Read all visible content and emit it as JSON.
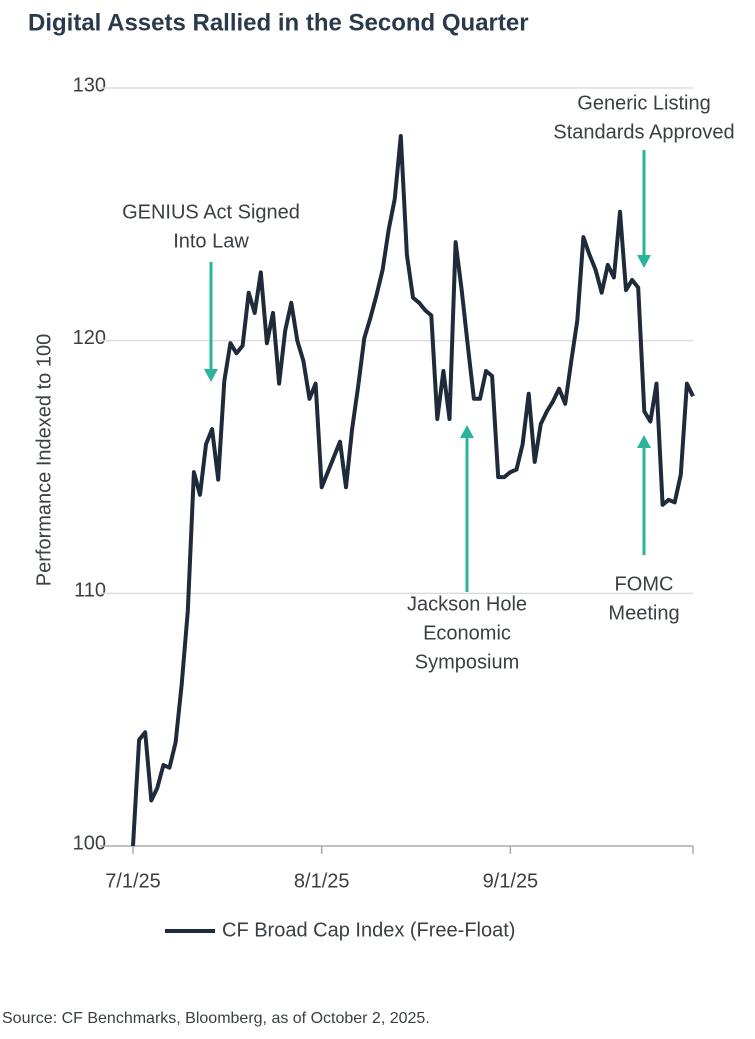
{
  "chart_data": {
    "type": "line",
    "title": "Digital Assets Rallied in the Second Quarter",
    "y_label": "Performance Indexed to 100",
    "source": "Source: CF Benchmarks, Bloomberg, as of October 2, 2025.",
    "legend": "bottom",
    "grid": true,
    "ylim": [
      100,
      130
    ],
    "yticks": [
      100,
      110,
      120,
      130
    ],
    "xlim": [
      "2025-07-01",
      "2025-10-01"
    ],
    "xticks": [
      {
        "value": "2025-07-01",
        "label": "7/1/25"
      },
      {
        "value": "2025-08-01",
        "label": "8/1/25"
      },
      {
        "value": "2025-09-01",
        "label": "9/1/25"
      }
    ],
    "x": [
      "2025-07-01",
      "2025-07-02",
      "2025-07-03",
      "2025-07-04",
      "2025-07-05",
      "2025-07-06",
      "2025-07-07",
      "2025-07-08",
      "2025-07-09",
      "2025-07-10",
      "2025-07-11",
      "2025-07-12",
      "2025-07-13",
      "2025-07-14",
      "2025-07-15",
      "2025-07-16",
      "2025-07-17",
      "2025-07-18",
      "2025-07-19",
      "2025-07-20",
      "2025-07-21",
      "2025-07-22",
      "2025-07-23",
      "2025-07-24",
      "2025-07-25",
      "2025-07-26",
      "2025-07-27",
      "2025-07-28",
      "2025-07-29",
      "2025-07-30",
      "2025-07-31",
      "2025-08-01",
      "2025-08-02",
      "2025-08-03",
      "2025-08-04",
      "2025-08-05",
      "2025-08-06",
      "2025-08-07",
      "2025-08-08",
      "2025-08-09",
      "2025-08-10",
      "2025-08-11",
      "2025-08-12",
      "2025-08-13",
      "2025-08-14",
      "2025-08-15",
      "2025-08-16",
      "2025-08-17",
      "2025-08-18",
      "2025-08-19",
      "2025-08-20",
      "2025-08-21",
      "2025-08-22",
      "2025-08-23",
      "2025-08-24",
      "2025-08-25",
      "2025-08-26",
      "2025-08-27",
      "2025-08-28",
      "2025-08-29",
      "2025-08-30",
      "2025-08-31",
      "2025-09-01",
      "2025-09-02",
      "2025-09-03",
      "2025-09-04",
      "2025-09-05",
      "2025-09-06",
      "2025-09-07",
      "2025-09-08",
      "2025-09-09",
      "2025-09-10",
      "2025-09-11",
      "2025-09-12",
      "2025-09-13",
      "2025-09-14",
      "2025-09-15",
      "2025-09-16",
      "2025-09-17",
      "2025-09-18",
      "2025-09-19",
      "2025-09-20",
      "2025-09-21",
      "2025-09-22",
      "2025-09-23",
      "2025-09-24",
      "2025-09-25",
      "2025-09-26",
      "2025-09-27",
      "2025-09-28",
      "2025-09-29",
      "2025-09-30",
      "2025-10-01"
    ],
    "series": [
      {
        "name": "CF Broad Cap Index (Free-Float)",
        "color": "#1f2a3a",
        "values": [
          100,
          104.2,
          104.5,
          101.8,
          102.3,
          103.2,
          103.1,
          104.1,
          106.4,
          109.3,
          114.8,
          113.9,
          115.9,
          116.5,
          114.5,
          118.4,
          119.9,
          119.5,
          119.8,
          121.9,
          121.1,
          122.7,
          119.9,
          121.1,
          118.3,
          120.4,
          121.5,
          120.0,
          119.2,
          117.7,
          118.3,
          114.2,
          114.8,
          115.4,
          116.0,
          114.2,
          116.5,
          118.2,
          120.1,
          120.9,
          121.8,
          122.8,
          124.4,
          125.6,
          128.1,
          123.4,
          121.7,
          121.5,
          121.2,
          121.0,
          116.9,
          118.8,
          116.9,
          123.9,
          122.0,
          119.8,
          117.7,
          117.7,
          118.8,
          118.6,
          114.6,
          114.6,
          114.8,
          114.9,
          115.9,
          117.9,
          115.2,
          116.7,
          117.2,
          117.6,
          118.1,
          117.5,
          119.2,
          120.8,
          124.1,
          123.4,
          122.8,
          121.9,
          123.0,
          122.5,
          125.1,
          122.0,
          122.4,
          122.1,
          117.2,
          116.8,
          118.3,
          113.5,
          113.7,
          113.6,
          114.7,
          118.3,
          117.8
        ]
      }
    ],
    "annotations": [
      {
        "lines": [
          "GENIUS Act Signed",
          "Into Law"
        ]
      },
      {
        "lines": [
          "Generic Listing",
          "Standards Approved"
        ]
      },
      {
        "lines": [
          "Jackson Hole",
          "Economic",
          "Symposium"
        ]
      },
      {
        "lines": [
          "FOMC",
          "Meeting"
        ]
      }
    ],
    "annotation_color": "#2bb39b"
  }
}
